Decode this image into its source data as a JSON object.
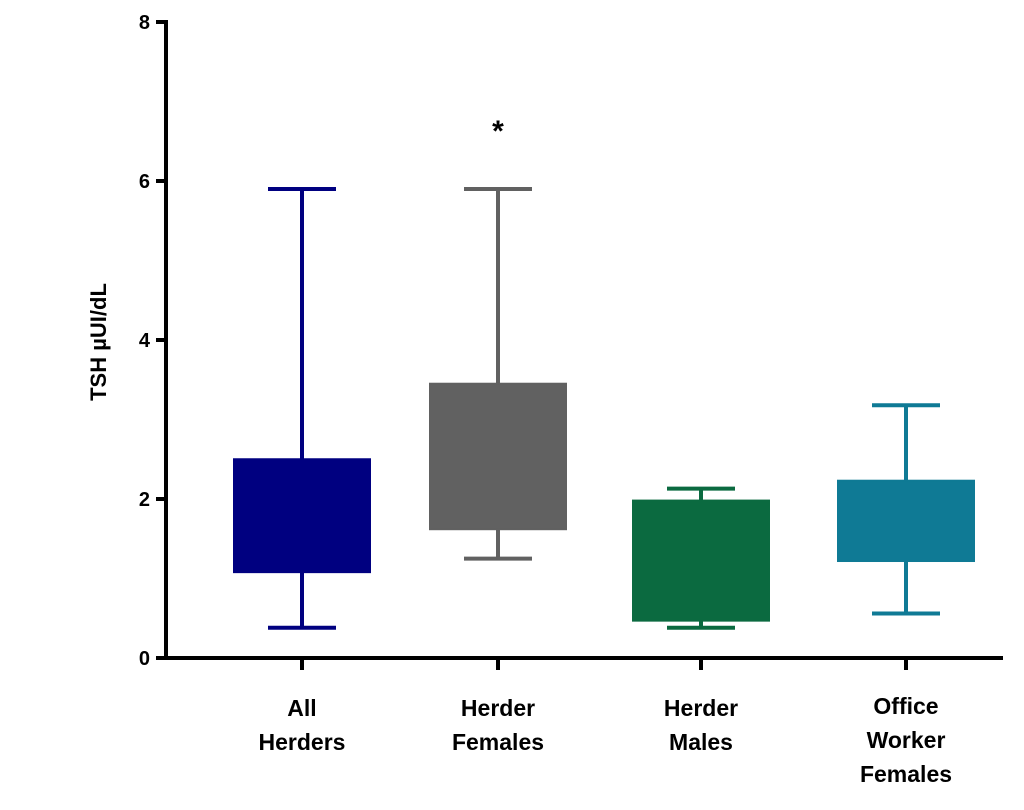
{
  "chart_data": {
    "type": "box",
    "title": "",
    "xlabel": "",
    "ylabel": "TSH µUI/dL",
    "ylim": [
      0,
      8
    ],
    "yticks": [
      "0",
      "2",
      "4",
      "6",
      "8"
    ],
    "grid": false,
    "legend": "none",
    "categories": [
      [
        "All",
        "Herders"
      ],
      [
        "Herder",
        "Females"
      ],
      [
        "Herder",
        "Males"
      ],
      [
        "Office",
        "Worker",
        "Females"
      ]
    ],
    "series": [
      {
        "min": 0.38,
        "q1": 1.08,
        "q3": 2.5,
        "max": 5.9,
        "color": "#000080"
      },
      {
        "min": 1.25,
        "q1": 1.62,
        "q3": 3.45,
        "max": 5.9,
        "color": "#616161",
        "annotation": "*"
      },
      {
        "min": 0.38,
        "q1": 0.47,
        "q3": 1.98,
        "max": 2.13,
        "color": "#0b6a40"
      },
      {
        "min": 0.56,
        "q1": 1.22,
        "q3": 2.23,
        "max": 3.18,
        "color": "#0f7a95"
      }
    ]
  }
}
